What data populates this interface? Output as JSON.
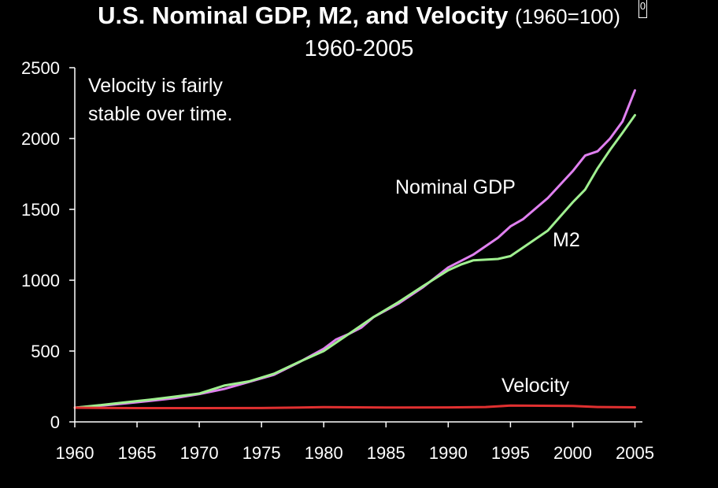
{
  "header": {
    "title_main": "U.S. Nominal GDP, M2, and Velocity",
    "title_suffix": "(1960=100)",
    "subtitle": "1960-2005",
    "badge": "0"
  },
  "chart_data": {
    "type": "line",
    "title": "U.S. Nominal GDP, M2, and Velocity (1960=100)",
    "subtitle": "1960-2005",
    "xlabel": "",
    "ylabel": "",
    "xlim": [
      1960,
      2005.6
    ],
    "ylim": [
      0,
      2500
    ],
    "xticks": [
      1960,
      1965,
      1970,
      1975,
      1980,
      1985,
      1990,
      1995,
      2000,
      2005
    ],
    "yticks": [
      0,
      500,
      1000,
      1500,
      2000,
      2500
    ],
    "grid": false,
    "legend": "none",
    "annotation": "Velocity is fairly stable over time.",
    "series": [
      {
        "name": "Nominal GDP",
        "color": "#e080f0",
        "x": [
          1960,
          1962,
          1964,
          1966,
          1968,
          1970,
          1972,
          1974,
          1976,
          1978,
          1980,
          1981,
          1982,
          1983,
          1984,
          1986,
          1988,
          1990,
          1992,
          1994,
          1995,
          1996,
          1998,
          2000,
          2001,
          2002,
          2003,
          2004,
          2005
        ],
        "y": [
          100,
          114,
          130,
          148,
          167,
          196,
          232,
          282,
          332,
          420,
          516,
          582,
          620,
          665,
          740,
          835,
          952,
          1090,
          1180,
          1300,
          1380,
          1430,
          1580,
          1770,
          1880,
          1910,
          2000,
          2120,
          2340
        ]
      },
      {
        "name": "M2",
        "color": "#a0f090",
        "x": [
          1960,
          1962,
          1964,
          1966,
          1968,
          1970,
          1972,
          1974,
          1976,
          1978,
          1980,
          1982,
          1984,
          1986,
          1988,
          1990,
          1991,
          1992,
          1994,
          1995,
          1996,
          1998,
          2000,
          2001,
          2002,
          2003,
          2004,
          2005
        ],
        "y": [
          100,
          118,
          138,
          156,
          178,
          200,
          256,
          286,
          340,
          422,
          500,
          620,
          740,
          845,
          960,
          1070,
          1110,
          1140,
          1150,
          1170,
          1230,
          1350,
          1550,
          1640,
          1790,
          1920,
          2040,
          2165
        ]
      },
      {
        "name": "Velocity",
        "color": "#e03030",
        "x": [
          1960,
          1965,
          1970,
          1975,
          1980,
          1985,
          1990,
          1993,
          1995,
          2000,
          2002,
          2005
        ],
        "y": [
          100,
          97,
          97,
          98,
          104,
          101,
          102,
          105,
          115,
          113,
          105,
          103
        ]
      }
    ]
  }
}
